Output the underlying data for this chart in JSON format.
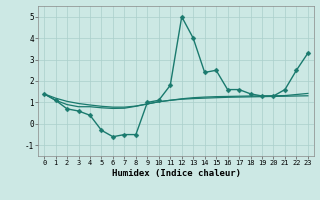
{
  "title": "",
  "xlabel": "Humidex (Indice chaleur)",
  "background_color": "#cce8e4",
  "line_color": "#1a7a6e",
  "grid_color": "#aacfcb",
  "xlim": [
    -0.5,
    23.5
  ],
  "ylim": [
    -1.5,
    5.5
  ],
  "yticks": [
    -1,
    0,
    1,
    2,
    3,
    4,
    5
  ],
  "xticks": [
    0,
    1,
    2,
    3,
    4,
    5,
    6,
    7,
    8,
    9,
    10,
    11,
    12,
    13,
    14,
    15,
    16,
    17,
    18,
    19,
    20,
    21,
    22,
    23
  ],
  "series": [
    [
      1.4,
      1.1,
      0.7,
      0.6,
      0.4,
      -0.3,
      -0.6,
      -0.5,
      -0.5,
      1.0,
      1.1,
      1.8,
      5.0,
      4.0,
      2.4,
      2.5,
      1.6,
      1.6,
      1.4,
      1.3,
      1.3,
      1.6,
      2.5,
      3.3
    ],
    [
      1.4,
      1.1,
      0.9,
      0.8,
      0.8,
      0.75,
      0.72,
      0.73,
      0.82,
      0.93,
      1.03,
      1.1,
      1.15,
      1.18,
      1.2,
      1.22,
      1.24,
      1.25,
      1.26,
      1.27,
      1.28,
      1.29,
      1.3,
      1.31
    ],
    [
      1.4,
      1.2,
      1.05,
      0.95,
      0.88,
      0.82,
      0.78,
      0.78,
      0.83,
      0.93,
      1.03,
      1.1,
      1.17,
      1.22,
      1.25,
      1.27,
      1.28,
      1.29,
      1.3,
      1.3,
      1.31,
      1.32,
      1.37,
      1.42
    ]
  ]
}
